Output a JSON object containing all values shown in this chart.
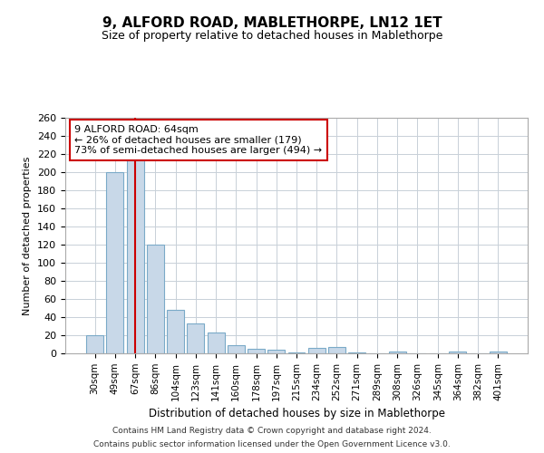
{
  "title": "9, ALFORD ROAD, MABLETHORPE, LN12 1ET",
  "subtitle": "Size of property relative to detached houses in Mablethorpe",
  "xlabel": "Distribution of detached houses by size in Mablethorpe",
  "ylabel": "Number of detached properties",
  "categories": [
    "30sqm",
    "49sqm",
    "67sqm",
    "86sqm",
    "104sqm",
    "123sqm",
    "141sqm",
    "160sqm",
    "178sqm",
    "197sqm",
    "215sqm",
    "234sqm",
    "252sqm",
    "271sqm",
    "289sqm",
    "308sqm",
    "326sqm",
    "345sqm",
    "364sqm",
    "382sqm",
    "401sqm"
  ],
  "values": [
    20,
    200,
    215,
    120,
    48,
    33,
    23,
    9,
    5,
    4,
    1,
    6,
    7,
    1,
    0,
    2,
    0,
    0,
    2,
    0,
    2
  ],
  "bar_color": "#c8d8e8",
  "bar_edge_color": "#7aaac8",
  "red_line_x": 2,
  "annotation_text": "9 ALFORD ROAD: 64sqm\n← 26% of detached houses are smaller (179)\n73% of semi-detached houses are larger (494) →",
  "annotation_box_color": "#ffffff",
  "annotation_box_edge_color": "#cc0000",
  "red_line_color": "#cc0000",
  "ylim": [
    0,
    260
  ],
  "yticks": [
    0,
    20,
    40,
    60,
    80,
    100,
    120,
    140,
    160,
    180,
    200,
    220,
    240,
    260
  ],
  "footer_line1": "Contains HM Land Registry data © Crown copyright and database right 2024.",
  "footer_line2": "Contains public sector information licensed under the Open Government Licence v3.0.",
  "background_color": "#ffffff",
  "grid_color": "#c8d0d8"
}
